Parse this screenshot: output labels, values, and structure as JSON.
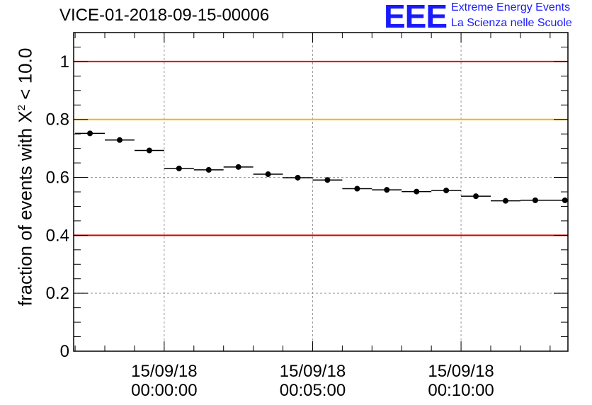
{
  "header": {
    "title": "VICE-01-2018-09-15-00006",
    "logo_text": "EEE",
    "logo_line1": "Extreme Energy Events",
    "logo_line2": "La Scienza nelle Scuole"
  },
  "colors": {
    "limit_red": "#e00000",
    "limit_orange": "#ffb000",
    "points": "#000000",
    "grid": "#9a9a9a",
    "logo": "#1a1aff"
  },
  "chart_data": {
    "type": "scatter",
    "title": "VICE-01-2018-09-15-00006",
    "ylabel_prefix": "fraction of events with ",
    "ylabel_symbol": "X",
    "ylabel_exp": "2",
    "ylabel_suffix": " < 10.0",
    "xlabel": "",
    "x_unit": "minutes since 15/09/18 00:00:00",
    "xlim": [
      -3.05,
      13.6
    ],
    "ylim": [
      0,
      1.1
    ],
    "bin_width": 1.0,
    "x": [
      -2.5,
      -1.5,
      -0.5,
      0.5,
      1.5,
      2.5,
      3.5,
      4.5,
      5.5,
      6.5,
      7.5,
      8.5,
      9.5,
      10.5,
      11.5,
      12.5,
      13.5
    ],
    "values": [
      0.752,
      0.729,
      0.693,
      0.631,
      0.626,
      0.636,
      0.611,
      0.599,
      0.591,
      0.561,
      0.557,
      0.551,
      0.555,
      0.535,
      0.519,
      0.521,
      0.521
    ],
    "hlines": [
      {
        "y": 1.0,
        "color": "limit_red"
      },
      {
        "y": 0.8,
        "color": "limit_orange"
      },
      {
        "y": 0.4,
        "color": "limit_red"
      }
    ],
    "y_ticks": [
      0,
      0.2,
      0.4,
      0.6,
      0.8,
      1
    ],
    "y_tick_labels": [
      "0",
      "0.2",
      "0.4",
      "0.6",
      "0.8",
      "1"
    ],
    "x_ticks": [
      {
        "x": 0,
        "date": "15/09/18",
        "time": "00:00:00"
      },
      {
        "x": 5,
        "date": "15/09/18",
        "time": "00:05:00"
      },
      {
        "x": 10,
        "date": "15/09/18",
        "time": "00:10:00"
      }
    ],
    "grid": true
  }
}
